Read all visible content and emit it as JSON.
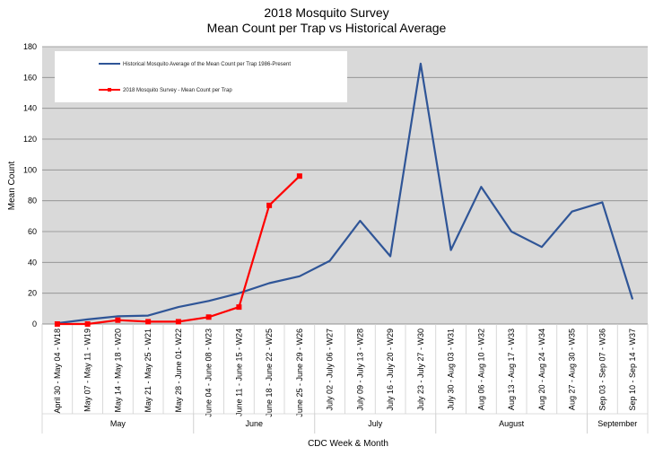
{
  "chart_data": {
    "type": "line",
    "title": "2018 Mosquito Survey",
    "subtitle": "Mean Count per Trap vs Historical Average",
    "xlabel": "CDC Week & Month",
    "ylabel": "Mean Count",
    "ylim": [
      0,
      180
    ],
    "yticks": [
      0,
      20,
      40,
      60,
      80,
      100,
      120,
      140,
      160,
      180
    ],
    "grid": true,
    "legend_position": "top-left",
    "categories": [
      "April 30 - May 04 - W18",
      "May 07 - May 11 - W19",
      "May 14 - May 18 - W20",
      "May 21 - May 25 - W21",
      "May 28 - June 01- W22",
      "June 04 - June 08 - W23",
      "June 11 - June 15 - W24",
      "June 18 - June 22 - W25",
      "June 25 - June 29 - W26",
      "July 02 - July 06 - W27",
      "July 09 - July 13 - W28",
      "July 16 - July 20 - W29",
      "July 23 - July 27 - W30",
      "July 30 - Aug 03 - W31",
      "Aug 06 - Aug 10 - W32",
      "Aug 13 - Aug 17 - W33",
      "Aug 20 - Aug 24 - W34",
      "Aug 27 - Aug 30 - W35",
      "Sep 03 - Sep 07 - W36",
      "Sep 10 - Sep 14 - W37"
    ],
    "months": [
      {
        "name": "May",
        "start": 0,
        "end": 4
      },
      {
        "name": "June",
        "start": 5,
        "end": 8
      },
      {
        "name": "July",
        "start": 9,
        "end": 12
      },
      {
        "name": "August",
        "start": 13,
        "end": 17
      },
      {
        "name": "September",
        "start": 18,
        "end": 19
      }
    ],
    "series": [
      {
        "name": "Historical Mosquito Average of the Mean Count per Trap 1986-Present",
        "color": "#2f5597",
        "marker": "none",
        "values": [
          0.5,
          3,
          5,
          5.5,
          11,
          15,
          20,
          26.5,
          31,
          41,
          67,
          44,
          169,
          48,
          89,
          60,
          50,
          73,
          79,
          16
        ]
      },
      {
        "name": "2018 Mosquito Survey - Mean Count per Trap",
        "color": "#ff0000",
        "marker": "square",
        "values": [
          0,
          0,
          2.5,
          1.5,
          1.5,
          4.5,
          11,
          77,
          96,
          null,
          null,
          null,
          null,
          null,
          null,
          null,
          null,
          null,
          null,
          null
        ]
      }
    ]
  }
}
